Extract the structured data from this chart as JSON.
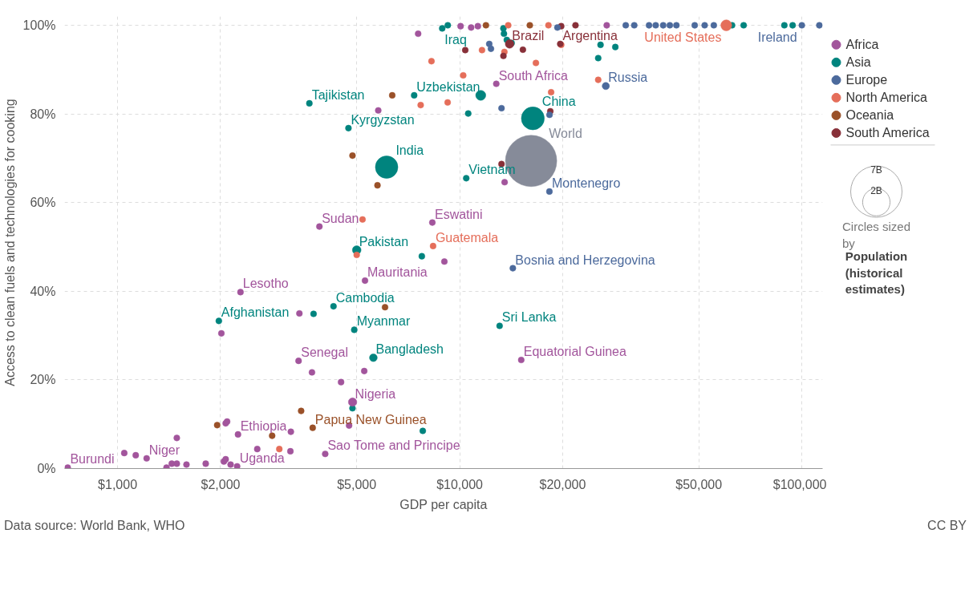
{
  "chart_data": {
    "type": "bubble",
    "xlabel": "GDP per capita",
    "ylabel": "Access to clean fuels and technologies for cooking",
    "log": "x",
    "xlim": [
      700,
      115000
    ],
    "ylim": [
      0,
      102
    ],
    "xticks": [
      {
        "value": 1000,
        "label": "$1,000"
      },
      {
        "value": 2000,
        "label": "$2,000"
      },
      {
        "value": 5000,
        "label": "$5,000"
      },
      {
        "value": 10000,
        "label": "$10,000"
      },
      {
        "value": 20000,
        "label": "$20,000"
      },
      {
        "value": 50000,
        "label": "$50,000"
      },
      {
        "value": 100000,
        "label": "$100,000"
      }
    ],
    "yticks": [
      {
        "value": 0,
        "label": "0%"
      },
      {
        "value": 20,
        "label": "20%"
      },
      {
        "value": 40,
        "label": "40%"
      },
      {
        "value": 60,
        "label": "60%"
      },
      {
        "value": 80,
        "label": "80%"
      },
      {
        "value": 100,
        "label": "100%"
      }
    ],
    "grid": true,
    "legend": "top right",
    "marker": "circle",
    "size_legend": [
      {
        "value": 2,
        "label": "2B"
      },
      {
        "value": 7,
        "label": "7B"
      }
    ],
    "series": [
      {
        "name": "Africa",
        "color": "#a2559c",
        "x": [
          715,
          1216,
          2249,
          2236,
          4045,
          4863,
          3381,
          2287,
          3890,
          8318,
          5287,
          12790,
          15130,
          2011,
          3400,
          3700,
          4500,
          5260,
          2070,
          2090,
          3210,
          4750,
          1490,
          1046,
          1130,
          2560,
          3200,
          1390,
          1440,
          1490,
          1590,
          1810,
          2045,
          2070,
          2140,
          7560,
          9020,
          5780,
          10060,
          10800,
          11300,
          26900,
          13530
        ],
        "values": [
          0.2,
          2.3,
          7.7,
          0.5,
          3.3,
          15.0,
          24.3,
          39.8,
          54.6,
          55.5,
          42.4,
          86.8,
          24.5,
          30.5,
          35.0,
          21.7,
          19.5,
          22.0,
          10.2,
          10.6,
          8.3,
          9.7,
          6.9,
          3.5,
          3.0,
          4.4,
          3.9,
          0.2,
          1.1,
          1.1,
          0.9,
          1.1,
          1.6,
          2.1,
          0.9,
          98.1,
          46.7,
          80.8,
          99.8,
          99.5,
          99.8,
          100,
          64.6
        ],
        "sizes": [
          0.1,
          0.1,
          0.1,
          0.1,
          0.1,
          0.19,
          0.1,
          0.1,
          0.1,
          0.1,
          0.1,
          0.1,
          0.1,
          0.1,
          0.1,
          0.1,
          0.1,
          0.1,
          0.1,
          0.1,
          0.1,
          0.1,
          0.1,
          0.1,
          0.1,
          0.1,
          0.1,
          0.1,
          0.1,
          0.1,
          0.1,
          0.1,
          0.1,
          0.1,
          0.1,
          0.1,
          0.1,
          0.1,
          0.1,
          0.1,
          0.1,
          0.1,
          0.1
        ]
      },
      {
        "name": "Asia",
        "color": "#00847e",
        "x": [
          8890,
          3636,
          7360,
          4730,
          6115,
          16360,
          10450,
          5000,
          1977,
          4277,
          4918,
          5593,
          13080,
          9230,
          13420,
          13470,
          13730,
          14180,
          25800,
          28500,
          25400,
          11520,
          10590,
          7750,
          7800,
          4860,
          3740,
          62530,
          67600,
          88900,
          94000
        ],
        "values": [
          99.3,
          82.4,
          84.2,
          76.8,
          68.0,
          79.0,
          65.5,
          49.3,
          33.3,
          36.6,
          31.3,
          25.0,
          32.2,
          100,
          99.3,
          98.1,
          96.7,
          96.0,
          95.6,
          95.1,
          92.6,
          84.2,
          80.1,
          47.9,
          8.5,
          13.6,
          34.9,
          100,
          100,
          100,
          100
        ],
        "sizes": [
          0.1,
          0.1,
          0.1,
          0.1,
          1.35,
          1.4,
          0.1,
          0.2,
          0.1,
          0.1,
          0.1,
          0.16,
          0.1,
          0.1,
          0.1,
          0.1,
          0.1,
          0.1,
          0.1,
          0.1,
          0.1,
          0.27,
          0.1,
          0.1,
          0.1,
          0.1,
          0.1,
          0.1,
          0.1,
          0.1,
          0.1
        ]
      },
      {
        "name": "Europe",
        "color": "#4c6a9c",
        "x": [
          100000,
          26730,
          18290,
          14300,
          13250,
          12200,
          12340,
          19300,
          18300,
          30570,
          32370,
          35760,
          37400,
          39330,
          41130,
          42990,
          48630,
          52000,
          55300,
          112500
        ],
        "values": [
          100,
          86.3,
          62.5,
          45.2,
          81.3,
          95.8,
          94.7,
          99.5,
          79.8,
          100,
          100,
          100,
          100,
          100,
          100,
          100,
          100,
          100,
          100,
          100
        ],
        "sizes": [
          0.1,
          0.14,
          0.1,
          0.1,
          0.1,
          0.1,
          0.1,
          0.1,
          0.1,
          0.1,
          0.1,
          0.1,
          0.1,
          0.1,
          0.1,
          0.1,
          0.1,
          0.1,
          0.1,
          0.1
        ]
      },
      {
        "name": "North America",
        "color": "#e56e5a",
        "x": [
          60140,
          8360,
          8270,
          10240,
          11620,
          13510,
          16700,
          19800,
          25400,
          13860,
          18170,
          7690,
          9220,
          5200,
          5000,
          2970,
          18500
        ],
        "values": [
          100,
          50.2,
          91.9,
          88.7,
          94.4,
          94.0,
          91.5,
          95.6,
          87.7,
          100,
          100,
          82.0,
          82.6,
          56.2,
          48.2,
          4.4,
          84.9
        ],
        "sizes": [
          0.32,
          0.1,
          0.1,
          0.1,
          0.1,
          0.1,
          0.1,
          0.1,
          0.1,
          0.1,
          0.1,
          0.1,
          0.1,
          0.1,
          0.1,
          0.1,
          0.1
        ]
      },
      {
        "name": "Oceania",
        "color": "#9a5129",
        "x": [
          3718,
          11930,
          16030,
          6350,
          4860,
          5750,
          1955,
          2830,
          3440,
          6050
        ],
        "values": [
          9.2,
          100,
          100,
          84.2,
          70.6,
          63.9,
          9.8,
          7.4,
          13.0,
          36.4
        ],
        "sizes": [
          0.1,
          0.1,
          0.1,
          0.1,
          0.1,
          0.1,
          0.1,
          0.1,
          0.1,
          0.1
        ]
      },
      {
        "name": "South America",
        "color": "#883039",
        "x": [
          13990,
          19670,
          19800,
          21800,
          10380,
          13420,
          15300,
          13250,
          18400
        ],
        "values": [
          95.8,
          95.8,
          99.8,
          100,
          94.4,
          93.1,
          94.5,
          68.7,
          80.6
        ],
        "sizes": [
          0.2,
          0.1,
          0.1,
          0.1,
          0.1,
          0.1,
          0.1,
          0.1,
          0.1
        ]
      },
      {
        "color": "#868b99",
        "x": [
          16170
        ],
        "values": [
          69.4
        ],
        "sizes": [
          7
        ]
      }
    ],
    "annotations": [
      "Circles sized by",
      "Population (historical estimates)",
      "Data source: World Bank, WHO",
      "CC BY",
      {
        "text": "Burundi",
        "x": 715,
        "y": 0.2
      },
      {
        "text": "Niger",
        "x": 1216,
        "y": 2.3
      },
      {
        "text": "Ethiopia",
        "x": 2249,
        "y": 7.7
      },
      {
        "text": "Uganda",
        "x": 2236,
        "y": 0.5
      },
      {
        "text": "Sao Tome and Principe",
        "x": 4045,
        "y": 3.3
      },
      {
        "text": "Nigeria",
        "x": 4863,
        "y": 15.0
      },
      {
        "text": "Senegal",
        "x": 3381,
        "y": 24.3
      },
      {
        "text": "Lesotho",
        "x": 2287,
        "y": 39.8
      },
      {
        "text": "Sudan",
        "x": 3890,
        "y": 54.6
      },
      {
        "text": "Eswatini",
        "x": 8318,
        "y": 55.5
      },
      {
        "text": "Mauritania",
        "x": 5287,
        "y": 42.4
      },
      {
        "text": "South Africa",
        "x": 12790,
        "y": 86.8
      },
      {
        "text": "Equatorial Guinea",
        "x": 15130,
        "y": 24.5
      },
      {
        "text": "Iraq",
        "x": 8890,
        "y": 99.3
      },
      {
        "text": "Tajikistan",
        "x": 3636,
        "y": 82.4
      },
      {
        "text": "Uzbekistan",
        "x": 7360,
        "y": 84.2
      },
      {
        "text": "Kyrgyzstan",
        "x": 4730,
        "y": 76.8
      },
      {
        "text": "India",
        "x": 6115,
        "y": 68.0
      },
      {
        "text": "China",
        "x": 16360,
        "y": 79.0
      },
      {
        "text": "Vietnam",
        "x": 10450,
        "y": 65.5
      },
      {
        "text": "Pakistan",
        "x": 5000,
        "y": 49.3
      },
      {
        "text": "Afghanistan",
        "x": 1977,
        "y": 33.3
      },
      {
        "text": "Cambodia",
        "x": 4277,
        "y": 36.6
      },
      {
        "text": "Myanmar",
        "x": 4918,
        "y": 31.3
      },
      {
        "text": "Bangladesh",
        "x": 5593,
        "y": 25.0
      },
      {
        "text": "Sri Lanka",
        "x": 13080,
        "y": 32.2
      },
      {
        "text": "Ireland",
        "x": 100000,
        "y": 100
      },
      {
        "text": "Russia",
        "x": 26730,
        "y": 86.3
      },
      {
        "text": "Montenegro",
        "x": 18290,
        "y": 62.5
      },
      {
        "text": "Bosnia and Herzegovina",
        "x": 14300,
        "y": 45.2
      },
      {
        "text": "United States",
        "x": 60140,
        "y": 100
      },
      {
        "text": "Guatemala",
        "x": 8360,
        "y": 50.2
      },
      {
        "text": "Papua New Guinea",
        "x": 3718,
        "y": 9.2
      },
      {
        "text": "Brazil",
        "x": 13990,
        "y": 95.8
      },
      {
        "text": "Argentina",
        "x": 19670,
        "y": 95.8
      },
      {
        "text": "World",
        "x": 16170,
        "y": 69.4
      }
    ]
  }
}
